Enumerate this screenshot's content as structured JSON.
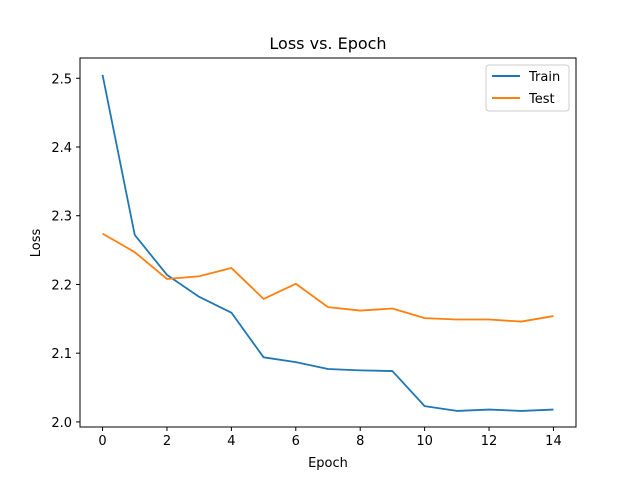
{
  "chart_data": {
    "type": "line",
    "title": "Loss vs. Epoch",
    "xlabel": "Epoch",
    "ylabel": "Loss",
    "x": [
      0,
      1,
      2,
      3,
      4,
      5,
      6,
      7,
      8,
      9,
      10,
      11,
      12,
      13,
      14
    ],
    "series": [
      {
        "name": "Train",
        "color": "#1f77b4",
        "values": [
          2.505,
          2.272,
          2.214,
          2.182,
          2.159,
          2.094,
          2.087,
          2.077,
          2.075,
          2.074,
          2.023,
          2.016,
          2.018,
          2.016,
          2.018
        ]
      },
      {
        "name": "Test",
        "color": "#ff7f0e",
        "values": [
          2.274,
          2.247,
          2.208,
          2.212,
          2.224,
          2.179,
          2.201,
          2.167,
          2.162,
          2.165,
          2.151,
          2.149,
          2.149,
          2.146,
          2.154
        ]
      }
    ],
    "xlim": [
      -0.7,
      14.7
    ],
    "ylim": [
      1.9926,
      2.5295
    ],
    "xticks": [
      0,
      2,
      4,
      6,
      8,
      10,
      12,
      14
    ],
    "yticks": [
      2.0,
      2.1,
      2.2,
      2.3,
      2.4,
      2.5
    ],
    "ytick_labels": [
      "2.0",
      "2.1",
      "2.2",
      "2.3",
      "2.4",
      "2.5"
    ],
    "grid": false,
    "legend": "top-right"
  }
}
